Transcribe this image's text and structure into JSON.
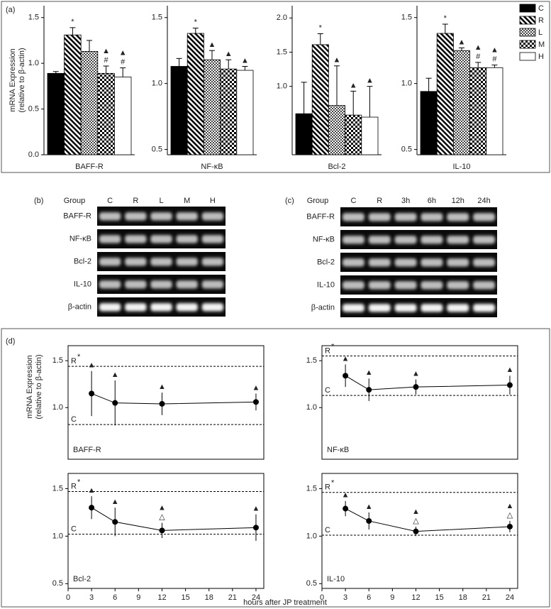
{
  "panels": [
    "(a)",
    "(b)",
    "(c)",
    "(d)"
  ],
  "gels": [
    {
      "header": "Group",
      "lanes": [
        "C",
        "R",
        "L",
        "M",
        "H"
      ],
      "rows": [
        "BAFF-R",
        "NF-κB",
        "Bcl-2",
        "IL-10",
        "β-actin"
      ]
    },
    {
      "header": "Group",
      "lanes": [
        "C",
        "R",
        "3h",
        "6h",
        "12h",
        "24h"
      ],
      "rows": [
        "BAFF-R",
        "NF-κB",
        "Bcl-2",
        "IL-10",
        "β-actin"
      ]
    }
  ],
  "chart_data": [
    {
      "type": "bar",
      "x_label": "BAFF-R",
      "y_label": [
        "mRNA Expression",
        "(relative to β-actin)"
      ],
      "legend": "right",
      "categories": [
        "C",
        "R",
        "L",
        "M",
        "H"
      ],
      "fills": [
        "black",
        "hatch",
        "fine-check",
        "checker",
        "white"
      ],
      "values": [
        0.89,
        1.31,
        1.13,
        0.89,
        0.85
      ],
      "errors": [
        0.02,
        0.08,
        0.12,
        0.08,
        0.1
      ],
      "annotations": [
        [],
        [
          "*"
        ],
        [],
        [
          "▲",
          "#"
        ],
        [
          "▲",
          "#"
        ]
      ],
      "ylim": [
        0,
        1.63
      ],
      "yticks": [
        {
          "value": 0,
          "label": "0.0"
        },
        {
          "value": 0.5,
          "label": "0.5"
        },
        {
          "value": 1,
          "label": "1.0"
        },
        {
          "value": 1.5,
          "label": "1.5"
        }
      ]
    },
    {
      "type": "bar",
      "x_label": "NF-κB",
      "categories": [
        "C",
        "R",
        "L",
        "M",
        "H"
      ],
      "fills": [
        "black",
        "hatch",
        "fine-check",
        "checker",
        "white"
      ],
      "values": [
        1.13,
        1.38,
        1.18,
        1.11,
        1.1
      ],
      "errors": [
        0.06,
        0.04,
        0.07,
        0.07,
        0.03
      ],
      "annotations": [
        [],
        [
          "*"
        ],
        [
          "▲"
        ],
        [
          "▲"
        ],
        [
          "▲"
        ]
      ],
      "ylim": [
        0.46,
        1.59
      ],
      "yticks": [
        0.5,
        {
          "value": 1,
          "label": "1.0"
        },
        1.5
      ]
    },
    {
      "type": "bar",
      "x_label": "Bcl-2",
      "categories": [
        "C",
        "R",
        "L",
        "M",
        "H"
      ],
      "fills": [
        "black",
        "hatch",
        "fine-check",
        "checker",
        "white"
      ],
      "values": [
        0.6,
        1.61,
        0.72,
        0.58,
        0.55
      ],
      "errors": [
        0.46,
        0.16,
        0.58,
        0.35,
        0.45
      ],
      "annotations": [
        [],
        [
          "*"
        ],
        [
          "▲"
        ],
        [
          "▲"
        ],
        [
          "▲"
        ]
      ],
      "ylim": [
        0,
        2.18
      ],
      "yticks": [
        {
          "value": 1,
          "label": "1.0"
        },
        1.5,
        {
          "value": 2,
          "label": "2.0"
        }
      ]
    },
    {
      "type": "bar",
      "x_label": "IL-10",
      "categories": [
        "C",
        "R",
        "L",
        "M",
        "H"
      ],
      "fills": [
        "black",
        "hatch",
        "fine-check",
        "checker",
        "white"
      ],
      "values": [
        0.94,
        1.38,
        1.25,
        1.12,
        1.12
      ],
      "errors": [
        0.1,
        0.07,
        0.02,
        0.04,
        0.02
      ],
      "annotations": [
        [],
        [
          "*"
        ],
        [
          "▲"
        ],
        [
          "▲",
          "#"
        ],
        [
          "▲",
          "#"
        ]
      ],
      "ylim": [
        0.46,
        1.59
      ],
      "yticks": [
        0.5,
        {
          "value": 1,
          "label": "1.0"
        },
        1.5
      ]
    },
    {
      "type": "line",
      "title": "BAFF-R",
      "y_label": [
        "mRNA Expression",
        "(relative to β-actin)"
      ],
      "x": [
        3,
        6,
        12,
        24
      ],
      "values": [
        1.15,
        1.05,
        1.04,
        1.06
      ],
      "errors": [
        0.24,
        0.24,
        0.12,
        0.09
      ],
      "annotations": [
        [
          "▲"
        ],
        [
          "▲"
        ],
        [
          "▲"
        ],
        [
          "▲"
        ]
      ],
      "ref_lines": [
        {
          "label": "R",
          "mark": "*",
          "value": 1.44
        },
        {
          "label": "C",
          "value": 0.82
        }
      ],
      "xlim": [
        0,
        25
      ],
      "ylim": [
        0.45,
        1.66
      ],
      "yticks": [
        {
          "value": 1,
          "label": "1.0"
        },
        1.5
      ]
    },
    {
      "type": "line",
      "title": "NF-κB",
      "x": [
        3,
        6,
        12,
        24
      ],
      "values": [
        1.34,
        1.19,
        1.22,
        1.24
      ],
      "errors": [
        0.12,
        0.12,
        0.08,
        0.1
      ],
      "annotations": [
        [
          "▲"
        ],
        [
          "▲"
        ],
        [
          "▲"
        ],
        [
          "▲"
        ]
      ],
      "ref_lines": [
        {
          "label": "R",
          "mark": "*",
          "value": 1.55
        },
        {
          "label": "C",
          "value": 1.13
        }
      ],
      "xlim": [
        0,
        25
      ],
      "ylim": [
        0.45,
        1.66
      ],
      "yticks": [
        {
          "value": 1,
          "label": "1.0"
        },
        1.5
      ]
    },
    {
      "type": "line",
      "title": "Bcl-2",
      "x_label": "hours after JP treatment",
      "x": [
        3,
        6,
        12,
        24
      ],
      "values": [
        1.3,
        1.15,
        1.06,
        1.09
      ],
      "errors": [
        0.12,
        0.15,
        0.08,
        0.14
      ],
      "annotations": [
        [
          "▲"
        ],
        [
          "▲"
        ],
        [
          "▲",
          "△"
        ],
        [
          "▲"
        ]
      ],
      "ref_lines": [
        {
          "label": "R",
          "mark": "*",
          "value": 1.47
        },
        {
          "label": "C",
          "value": 1.02
        }
      ],
      "xlim": [
        0,
        25
      ],
      "xticks": [
        0,
        3,
        6,
        9,
        12,
        15,
        18,
        21,
        24
      ],
      "ylim": [
        0.45,
        1.66
      ],
      "yticks": [
        0.5,
        {
          "value": 1,
          "label": "1.0"
        },
        1.5
      ]
    },
    {
      "type": "line",
      "title": "IL-10",
      "x": [
        3,
        6,
        12,
        24
      ],
      "values": [
        1.29,
        1.16,
        1.05,
        1.1
      ],
      "errors": [
        0.08,
        0.09,
        0.05,
        0.06
      ],
      "annotations": [
        [
          "▲"
        ],
        [
          "▲"
        ],
        [
          "▲",
          "△"
        ],
        [
          "▲",
          "△"
        ]
      ],
      "ref_lines": [
        {
          "label": "R",
          "mark": "*",
          "value": 1.46
        },
        {
          "label": "C",
          "value": 1.01
        }
      ],
      "xlim": [
        0,
        25
      ],
      "xticks": [
        0,
        3,
        6,
        9,
        12,
        15,
        18,
        21,
        24
      ],
      "ylim": [
        0.45,
        1.66
      ],
      "yticks": [
        0.5,
        {
          "value": 1,
          "label": "1.0"
        },
        1.5
      ]
    }
  ]
}
